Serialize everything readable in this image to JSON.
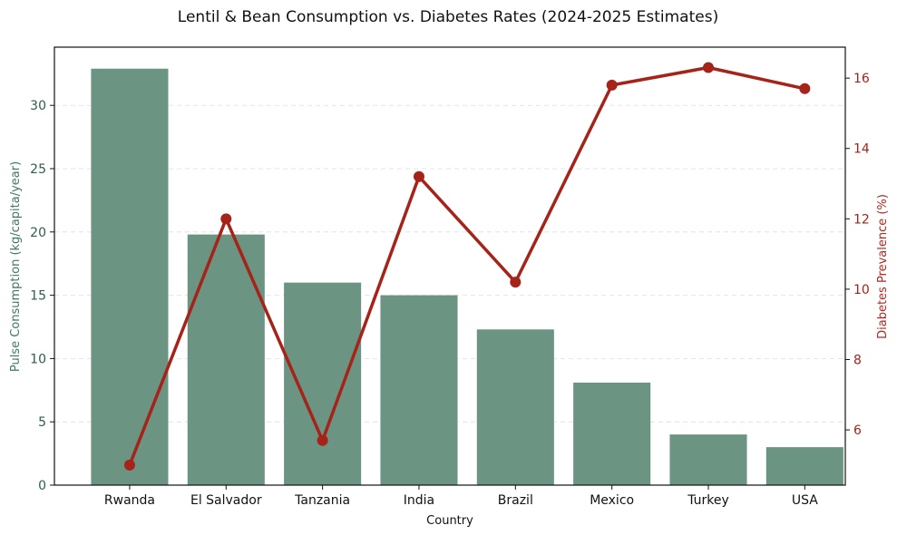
{
  "chart_data": {
    "type": "bar",
    "title": "Lentil & Bean Consumption vs. Diabetes Rates (2024-2025 Estimates)",
    "xlabel": "Country",
    "categories": [
      "Rwanda",
      "El Salvador",
      "Tanzania",
      "India",
      "Brazil",
      "Mexico",
      "Turkey",
      "USA"
    ],
    "series": [
      {
        "name": "Pulse Consumption (kg/capita/year)",
        "type": "bar",
        "axis": "left",
        "color": "#6b9482",
        "values": [
          32.9,
          19.8,
          16.0,
          15.0,
          12.3,
          8.1,
          4.0,
          3.0
        ]
      },
      {
        "name": "Diabetes Prevalence (%)",
        "type": "line",
        "axis": "right",
        "color": "#a52318",
        "marker": "circle",
        "values": [
          5.0,
          12.0,
          5.7,
          13.2,
          10.2,
          15.8,
          16.3,
          15.7
        ]
      }
    ],
    "y_left": {
      "label": "Pulse Consumption (kg/capita/year)",
      "ylim": [
        0,
        34.6
      ],
      "ticks": [
        0,
        5,
        10,
        15,
        20,
        25,
        30
      ],
      "color": "#2f5d4a"
    },
    "y_right": {
      "label": "Diabetes Prevalence (%)",
      "ylim": [
        4.43,
        16.88
      ],
      "ticks": [
        6,
        8,
        10,
        12,
        14,
        16
      ],
      "color": "#a52318"
    },
    "grid": "horizontal dashed (left axis ticks)",
    "legend": "none"
  }
}
